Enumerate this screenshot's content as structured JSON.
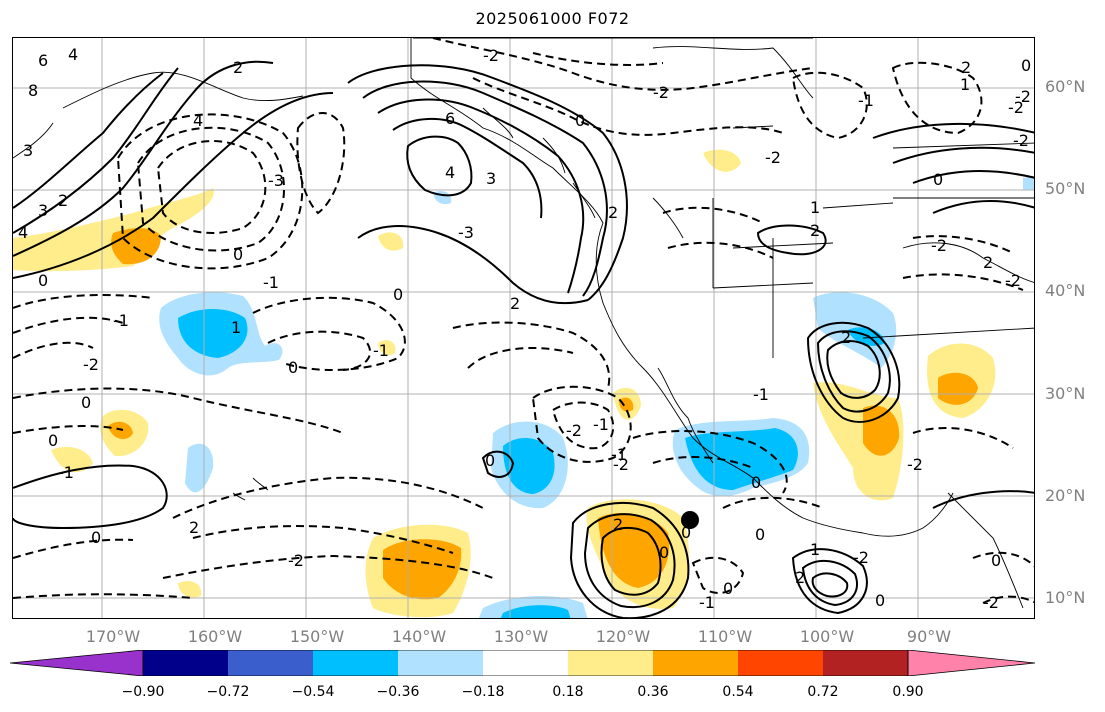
{
  "title": "2025061000 F072",
  "lat_labels": [
    "60°N",
    "50°N",
    "40°N",
    "30°N",
    "20°N",
    "10°N"
  ],
  "lon_labels": [
    "170°W",
    "160°W",
    "150°W",
    "140°W",
    "130°W",
    "120°W",
    "110°W",
    "100°W",
    "90°W"
  ],
  "colorbar": {
    "ticks": [
      "−0.90",
      "−0.72",
      "−0.54",
      "−0.36",
      "−0.18",
      "0.18",
      "0.36",
      "0.54",
      "0.72",
      "0.90"
    ],
    "colors": [
      "#9932cc",
      "#00008b",
      "#3a5fcd",
      "#00bfff",
      "#b0e2ff",
      "#ffffff",
      "#ffec8b",
      "#ffa500",
      "#ff4500",
      "#b22222",
      "#ff82ab"
    ]
  },
  "contour_labels": [
    "6",
    "4",
    "8",
    "3",
    "4",
    "3",
    "2",
    "4",
    "6",
    "4",
    "3",
    "2",
    "0",
    "0",
    "2",
    "0",
    "2",
    "0",
    "0",
    "2",
    "2",
    "1",
    "-2",
    "-2",
    "0",
    "2",
    "-2",
    "-1",
    "-2",
    "-3",
    "-3",
    "-2",
    "-1",
    "0",
    "0",
    "-1",
    "0",
    "2",
    "1",
    "-1",
    "0",
    "-2",
    "-2",
    "-1",
    "-1",
    "-1",
    "0",
    "-1",
    "-2",
    "2",
    "1",
    "0",
    "-2",
    "0",
    "2",
    "2",
    "-2",
    "0",
    "-2",
    "1",
    "-1",
    "0",
    "-2",
    "0",
    "0",
    "0",
    "-2",
    "-2",
    "-2"
  ],
  "map": {
    "contour_color": "#000000",
    "grid_color": "#b0b0b0",
    "marker_label": "",
    "shading_colors": {
      "positive_light": "#ffec8b",
      "positive_strong": "#ffa500",
      "negative_light": "#b0e2ff",
      "negative_strong": "#00bfff"
    }
  }
}
